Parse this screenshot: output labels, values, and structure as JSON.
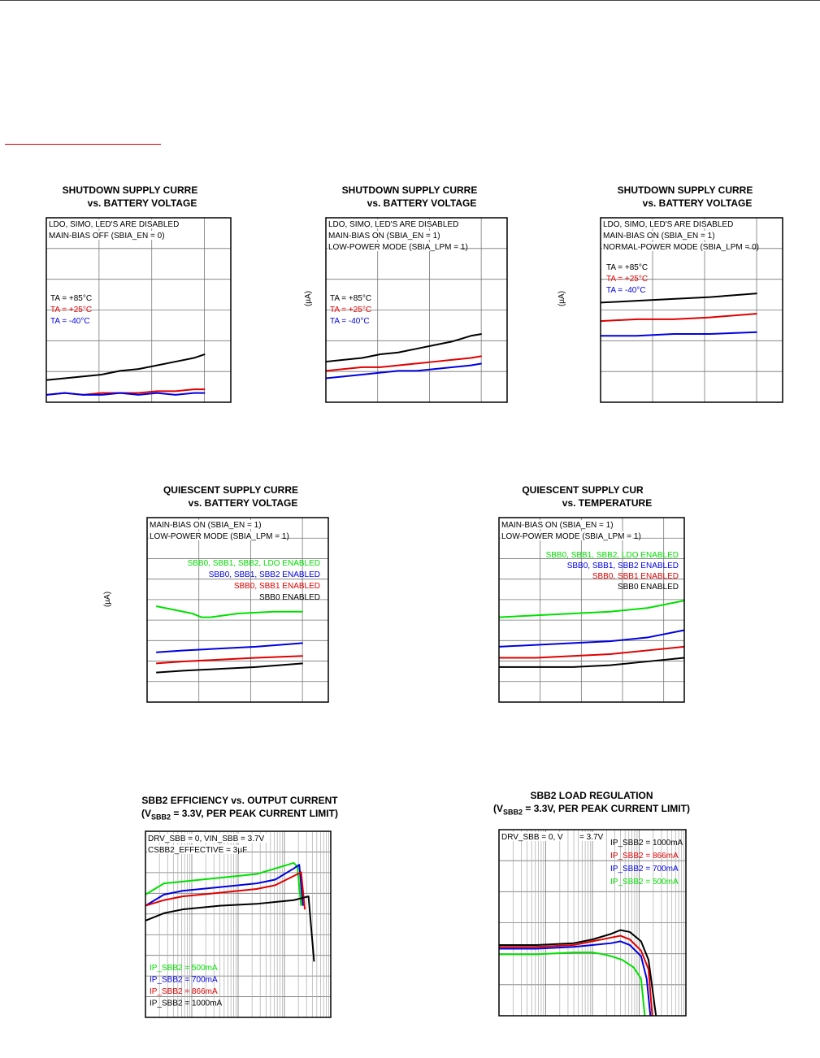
{
  "colors": {
    "black": "#000000",
    "red": "#e00000",
    "blue": "#0000e0",
    "green": "#00e000",
    "link": "#c00000"
  },
  "chart_data": [
    {
      "type": "line",
      "title": "SHUTDOWN SUPPLY CURRE",
      "subtitle": "vs. BATTERY VOLTAGE",
      "xlabel": "",
      "ylabel": "",
      "grid_x": 3,
      "grid_y": 6,
      "log_x": false,
      "xlim": [
        0,
        100
      ],
      "ylim": [
        0,
        100
      ],
      "annotations": [
        "LDO, SIMO, LED'S ARE DISABLED",
        "MAIN-BIAS OFF (SBIA_EN = 0)"
      ],
      "legend": [
        "TA = +85°C",
        "TA = +25°C",
        "TA = -40°C"
      ],
      "series": [
        {
          "name": "TA = +85°C",
          "color": "#000000",
          "x": [
            0,
            10,
            20,
            30,
            40,
            50,
            60,
            70,
            80,
            86
          ],
          "y": [
            12,
            13,
            14,
            15,
            17,
            18,
            20,
            22,
            24,
            26
          ]
        },
        {
          "name": "TA = +25°C",
          "color": "#e00000",
          "x": [
            0,
            10,
            20,
            30,
            40,
            50,
            60,
            70,
            80,
            86
          ],
          "y": [
            4,
            5,
            4,
            5,
            5,
            5,
            6,
            6,
            7,
            7
          ]
        },
        {
          "name": "TA = -40°C",
          "color": "#0000e0",
          "x": [
            0,
            10,
            20,
            30,
            40,
            50,
            60,
            70,
            80,
            86
          ],
          "y": [
            4,
            5,
            4,
            4,
            5,
            4,
            5,
            4,
            5,
            5
          ]
        }
      ]
    },
    {
      "type": "line",
      "title": "SHUTDOWN SUPPLY CURRE",
      "subtitle": "vs. BATTERY VOLTAGE",
      "xlabel": "",
      "ylabel": "(µA)",
      "grid_x": 3,
      "grid_y": 6,
      "log_x": false,
      "xlim": [
        0,
        100
      ],
      "ylim": [
        0,
        100
      ],
      "annotations": [
        "LDO, SIMO, LED'S ARE DISABLED",
        "MAIN-BIAS ON (SBIA_EN = 1)",
        "LOW-POWER MODE (SBIA_LPM = 1)"
      ],
      "legend": [
        "TA = +85°C",
        "TA = +25°C",
        "TA = -40°C"
      ],
      "series": [
        {
          "name": "TA = +85°C",
          "color": "#000000",
          "x": [
            0,
            10,
            20,
            30,
            40,
            50,
            60,
            70,
            80,
            86
          ],
          "y": [
            22,
            23,
            24,
            26,
            27,
            29,
            31,
            33,
            36,
            37
          ]
        },
        {
          "name": "TA = +25°C",
          "color": "#e00000",
          "x": [
            0,
            10,
            20,
            30,
            40,
            50,
            60,
            70,
            80,
            86
          ],
          "y": [
            17,
            18,
            19,
            19,
            20,
            21,
            22,
            23,
            24,
            25
          ]
        },
        {
          "name": "TA = -40°C",
          "color": "#0000e0",
          "x": [
            0,
            10,
            20,
            30,
            40,
            50,
            60,
            70,
            80,
            86
          ],
          "y": [
            13,
            14,
            15,
            16,
            17,
            17,
            18,
            19,
            20,
            21
          ]
        }
      ]
    },
    {
      "type": "line",
      "title": "SHUTDOWN SUPPLY CURRE",
      "subtitle": "vs. BATTERY VOLTAGE",
      "xlabel": "",
      "ylabel": "(µA)",
      "grid_x": 3,
      "grid_y": 6,
      "log_x": false,
      "xlim": [
        0,
        100
      ],
      "ylim": [
        0,
        100
      ],
      "annotations": [
        "LDO, SIMO, LED'S ARE DISABLED",
        "MAIN-BIAS ON (SBIA_EN = 1)",
        "NORMAL-POWER MODE (SBIA_LPM = 0)"
      ],
      "legend": [
        "TA = +85°C",
        "TA = +25°C",
        "TA = -40°C"
      ],
      "series": [
        {
          "name": "TA = +85°C",
          "color": "#000000",
          "x": [
            0,
            20,
            40,
            60,
            86
          ],
          "y": [
            54,
            55,
            56,
            57,
            59
          ]
        },
        {
          "name": "TA = +25°C",
          "color": "#e00000",
          "x": [
            0,
            20,
            40,
            60,
            86
          ],
          "y": [
            44,
            45,
            45,
            46,
            48
          ]
        },
        {
          "name": "TA = -40°C",
          "color": "#0000e0",
          "x": [
            0,
            20,
            40,
            60,
            86
          ],
          "y": [
            36,
            36,
            37,
            37,
            38
          ]
        }
      ]
    },
    {
      "type": "line",
      "title": "QUIESCENT SUPPLY CURRE",
      "subtitle": "vs. BATTERY VOLTAGE",
      "xlabel": "",
      "ylabel": "(µA)",
      "grid_x": 3,
      "grid_y": 9,
      "log_x": false,
      "xlim": [
        0,
        100
      ],
      "ylim": [
        0,
        100
      ],
      "annotations": [
        "MAIN-BIAS ON (SBIA_EN = 1)",
        "LOW-POWER MODE (SBIA_LPM = 1)"
      ],
      "legend": [
        "SBB0, SBB1, SBB2, LDO ENABLED",
        "SBB0, SBB1, SBB2 ENABLED",
        "SBB0, SBB1 ENABLED",
        "SBB0 ENABLED"
      ],
      "series": [
        {
          "name": "SBB0, SBB1, SBB2, LDO ENABLED",
          "color": "#00e000",
          "x": [
            5,
            15,
            25,
            30,
            35,
            50,
            70,
            86
          ],
          "y": [
            52,
            50,
            48,
            46,
            46,
            48,
            49,
            49
          ]
        },
        {
          "name": "SBB0, SBB1, SBB2 ENABLED",
          "color": "#0000e0",
          "x": [
            5,
            20,
            40,
            60,
            86
          ],
          "y": [
            27,
            28,
            29,
            30,
            32
          ]
        },
        {
          "name": "SBB0, SBB1 ENABLED",
          "color": "#e00000",
          "x": [
            5,
            20,
            40,
            60,
            86
          ],
          "y": [
            21,
            22,
            23,
            24,
            25
          ]
        },
        {
          "name": "SBB0 ENABLED",
          "color": "#000000",
          "x": [
            5,
            20,
            40,
            60,
            86
          ],
          "y": [
            16,
            17,
            18,
            19,
            21
          ]
        }
      ]
    },
    {
      "type": "line",
      "title": "QUIESCENT SUPPLY CUR",
      "subtitle": "vs. TEMPERATURE",
      "xlabel": "",
      "ylabel": "",
      "grid_x": 4,
      "grid_y": 9,
      "log_x": false,
      "xlim": [
        0,
        100
      ],
      "ylim": [
        0,
        100
      ],
      "annotations": [
        "MAIN-BIAS ON (SBIA_EN = 1)",
        "LOW-POWER MODE (SBIA_LPM = 1)"
      ],
      "legend": [
        "SBB0, SBB1, SBB2, LDO ENABLED",
        "SBB0, SBB1, SBB2 ENABLED",
        "SBB0, SBB1 ENABLED",
        "SBB0 ENABLED"
      ],
      "series": [
        {
          "name": "SBB0, SBB1, SBB2, LDO ENABLED",
          "color": "#00e000",
          "x": [
            0,
            20,
            40,
            60,
            80,
            100
          ],
          "y": [
            46,
            47,
            48,
            49,
            51,
            55
          ]
        },
        {
          "name": "SBB0, SBB1, SBB2 ENABLED",
          "color": "#0000e0",
          "x": [
            0,
            20,
            40,
            60,
            80,
            100
          ],
          "y": [
            30,
            31,
            32,
            33,
            35,
            39
          ]
        },
        {
          "name": "SBB0, SBB1 ENABLED",
          "color": "#e00000",
          "x": [
            0,
            20,
            40,
            60,
            80,
            100
          ],
          "y": [
            24,
            24,
            25,
            26,
            28,
            30
          ]
        },
        {
          "name": "SBB0 ENABLED",
          "color": "#000000",
          "x": [
            0,
            20,
            40,
            60,
            80,
            100
          ],
          "y": [
            19,
            19,
            19,
            20,
            22,
            24
          ]
        }
      ]
    },
    {
      "type": "line",
      "title": "SBB2 EFFICIENCY vs. OUTPUT CURRENT",
      "subtitle_pre": "(V",
      "subtitle_sub": "SBB2",
      "subtitle_post": " = 3.3V, PER PEAK CURRENT LIMIT)",
      "xlabel": "",
      "ylabel": "",
      "grid_x": 4,
      "grid_y": 9,
      "log_x": true,
      "xlim": [
        0,
        100
      ],
      "ylim": [
        0,
        100
      ],
      "annotations": [
        "DRV_SBB = 0, VIN_SBB = 3.7V",
        "CSBB2_EFFECTIVE = 3µF"
      ],
      "legend": [
        "IP_SBB2 = 500mA",
        "IP_SBB2 = 700mA",
        "IP_SBB2 = 866mA",
        "IP_SBB2 = 1000mA"
      ],
      "series": [
        {
          "name": "IP_SBB2 = 500mA",
          "color": "#00e000",
          "x": [
            0,
            10,
            20,
            40,
            60,
            70,
            80,
            82,
            84
          ],
          "y": [
            66,
            72,
            73,
            75,
            77,
            80,
            83,
            81,
            60
          ]
        },
        {
          "name": "IP_SBB2 = 700mA",
          "color": "#0000e0",
          "x": [
            0,
            10,
            20,
            40,
            60,
            70,
            80,
            83,
            85
          ],
          "y": [
            60,
            66,
            68,
            70,
            72,
            74,
            80,
            82,
            60
          ]
        },
        {
          "name": "IP_SBB2 = 866mA",
          "color": "#e00000",
          "x": [
            0,
            10,
            20,
            40,
            60,
            70,
            80,
            84,
            86
          ],
          "y": [
            60,
            63,
            65,
            67,
            69,
            71,
            76,
            78,
            58
          ]
        },
        {
          "name": "IP_SBB2 = 1000mA",
          "color": "#000000",
          "x": [
            0,
            10,
            20,
            40,
            60,
            70,
            80,
            88,
            91
          ],
          "y": [
            52,
            56,
            58,
            60,
            61,
            62,
            63,
            65,
            30
          ]
        }
      ]
    },
    {
      "type": "line",
      "title": "SBB2 LOAD REGULATION",
      "subtitle_pre": "(V",
      "subtitle_sub": "SBB2",
      "subtitle_post": " = 3.3V, PER PEAK CURRENT LIMIT)",
      "xlabel": "",
      "ylabel": "",
      "grid_x": 4,
      "grid_y": 6,
      "log_x": true,
      "xlim": [
        0,
        100
      ],
      "ylim": [
        0,
        100
      ],
      "annotations": [
        "DRV_SBB = 0, V",
        "= 3.7V"
      ],
      "legend": [
        "IP_SBB2 = 1000mA",
        "IP_SBB2 = 866mA",
        "IP_SBB2 = 700mA",
        "IP_SBB2 = 500mA"
      ],
      "series": [
        {
          "name": "IP_SBB2 = 1000mA",
          "color": "#000000",
          "x": [
            0,
            20,
            40,
            50,
            60,
            65,
            70,
            76,
            80,
            82,
            84
          ],
          "y": [
            38,
            38,
            39,
            41,
            44,
            46,
            45,
            40,
            30,
            15,
            0
          ]
        },
        {
          "name": "IP_SBB2 = 866mA",
          "color": "#e00000",
          "x": [
            0,
            20,
            40,
            50,
            60,
            65,
            70,
            76,
            80,
            82
          ],
          "y": [
            37,
            37,
            38,
            40,
            42,
            43,
            41,
            35,
            25,
            0
          ]
        },
        {
          "name": "IP_SBB2 = 700mA",
          "color": "#0000e0",
          "x": [
            0,
            20,
            40,
            50,
            60,
            65,
            70,
            76,
            79,
            81
          ],
          "y": [
            36,
            36,
            37,
            38,
            39,
            40,
            38,
            32,
            20,
            0
          ]
        },
        {
          "name": "IP_SBB2 = 500mA",
          "color": "#00e000",
          "x": [
            0,
            20,
            40,
            50,
            56,
            60,
            66,
            72,
            76,
            78
          ],
          "y": [
            33,
            33,
            34,
            34,
            33,
            32,
            30,
            26,
            20,
            0
          ]
        }
      ]
    }
  ]
}
